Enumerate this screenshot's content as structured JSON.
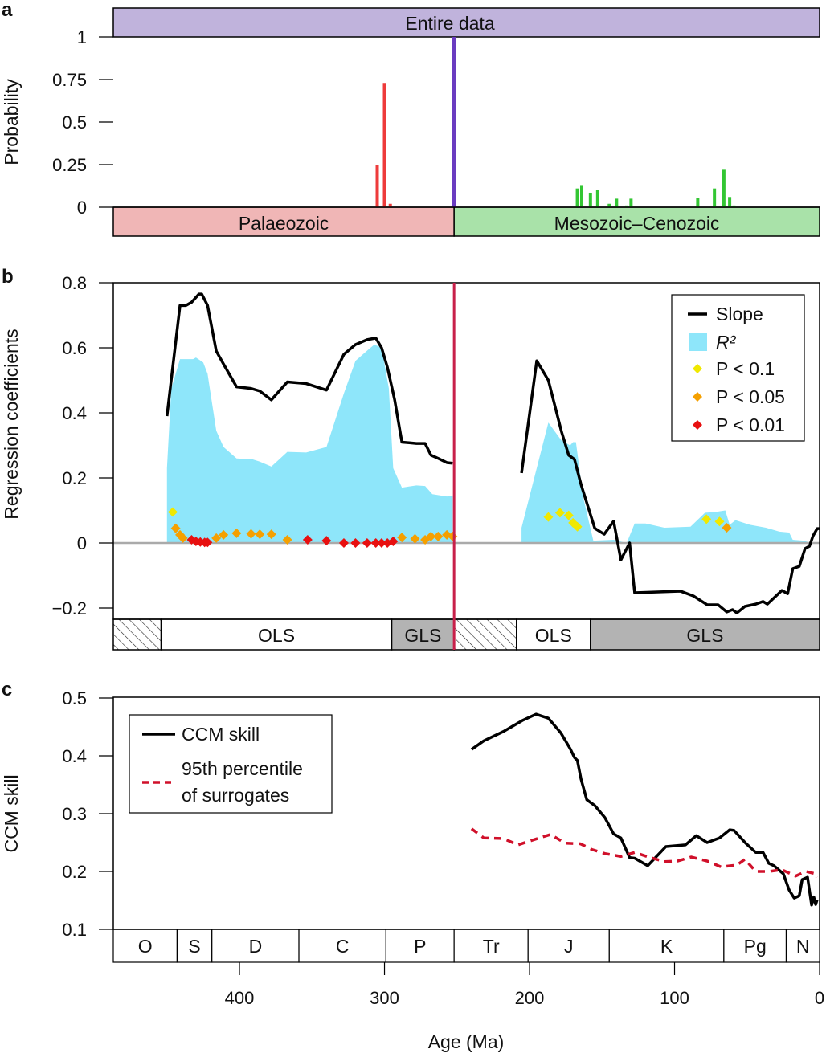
{
  "chart_data": [
    {
      "panel": "a",
      "type": "bar",
      "ylabel": "Probability",
      "header": "Entire data",
      "xlim": [
        487,
        0
      ],
      "ylim": [
        0,
        1
      ],
      "yticks": [
        0,
        0.25,
        0.5,
        0.75,
        1
      ],
      "yticklabels": [
        "0",
        "0.25",
        "0.5",
        "0.75",
        "1"
      ],
      "eras": [
        {
          "label": "Palaeozoic",
          "from": 487,
          "to": 252,
          "color": "#f0b6b6"
        },
        {
          "label": "Mesozoic–Cenozoic",
          "from": 252,
          "to": 0,
          "color": "#a9e2a9"
        }
      ],
      "series": [
        {
          "color": "#ee3b3b",
          "x": [
            305,
            300,
            296
          ],
          "values": [
            0.25,
            0.73,
            0.02
          ]
        },
        {
          "color": "#6a3cc0",
          "x": [
            252
          ],
          "values": [
            1
          ]
        },
        {
          "color": "#33c633",
          "x": [
            167,
            164,
            158,
            153,
            145,
            140,
            133,
            130,
            84,
            72.5,
            66,
            62,
            59
          ],
          "values": [
            0.11,
            0.13,
            0.085,
            0.1,
            0.02,
            0.05,
            0.01,
            0.05,
            0.055,
            0.11,
            0.22,
            0.06,
            0.01
          ]
        }
      ]
    },
    {
      "panel": "b",
      "type": "line",
      "ylabel": "Regression coefficients",
      "xlim": [
        487,
        0
      ],
      "ylim": [
        -0.23,
        0.8
      ],
      "yticks": [
        -0.2,
        0,
        0.2,
        0.4,
        0.6,
        0.8
      ],
      "yticklabels": [
        "−0.2",
        "0",
        "0.2",
        "0.4",
        "0.6",
        "0.8"
      ],
      "boundary_age": 252,
      "legend": {
        "slope": "Slope",
        "r2": "R²",
        "p1": "P < 0.1",
        "p05": "P < 0.05",
        "p01": "P < 0.01"
      },
      "colors": {
        "slope": "#000000",
        "r2": "#8ee6fa",
        "p1": "#f0e800",
        "p05": "#f5a000",
        "p01": "#e81010",
        "boundary": "#c8204a"
      },
      "slope": [
        [
          [
            450,
            0.39
          ],
          [
            441,
            0.73
          ],
          [
            437,
            0.73
          ],
          [
            433,
            0.74
          ],
          [
            428,
            0.765
          ],
          [
            426,
            0.765
          ],
          [
            422,
            0.73
          ],
          [
            416,
            0.59
          ],
          [
            411,
            0.55
          ],
          [
            402,
            0.48
          ],
          [
            392,
            0.475
          ],
          [
            386,
            0.467
          ],
          [
            378,
            0.44
          ],
          [
            367,
            0.495
          ],
          [
            354,
            0.49
          ],
          [
            340,
            0.47
          ],
          [
            328,
            0.58
          ],
          [
            320,
            0.61
          ],
          [
            312,
            0.625
          ],
          [
            306,
            0.63
          ],
          [
            302,
            0.6
          ],
          [
            298,
            0.54
          ],
          [
            293,
            0.44
          ],
          [
            288,
            0.31
          ],
          [
            278,
            0.306
          ],
          [
            272,
            0.306
          ],
          [
            268,
            0.27
          ],
          [
            263,
            0.26
          ],
          [
            257,
            0.247
          ],
          [
            253,
            0.245
          ]
        ],
        [
          [
            205.5,
            0.215
          ],
          [
            195,
            0.56
          ],
          [
            187,
            0.5
          ],
          [
            178,
            0.343
          ],
          [
            173,
            0.27
          ],
          [
            169,
            0.257
          ],
          [
            164.5,
            0.18
          ],
          [
            155,
            0.045
          ],
          [
            148.5,
            0.027
          ],
          [
            142,
            0.067
          ],
          [
            137,
            -0.052
          ],
          [
            131,
            0
          ],
          [
            127.5,
            -0.153
          ],
          [
            96,
            -0.148
          ],
          [
            87,
            -0.163
          ],
          [
            77.5,
            -0.19
          ],
          [
            70,
            -0.19
          ],
          [
            64,
            -0.212
          ],
          [
            60,
            -0.205
          ],
          [
            57,
            -0.215
          ],
          [
            51.5,
            -0.195
          ],
          [
            44,
            -0.188
          ],
          [
            39,
            -0.18
          ],
          [
            36,
            -0.188
          ],
          [
            26,
            -0.146
          ],
          [
            22,
            -0.156
          ],
          [
            18.5,
            -0.079
          ],
          [
            14,
            -0.072
          ],
          [
            10,
            -0.017
          ],
          [
            7,
            -0.01
          ],
          [
            4.5,
            0.022
          ],
          [
            1.7,
            0.044
          ],
          [
            0,
            0.044
          ]
        ]
      ],
      "r2": [
        [
          [
            450,
            0
          ],
          [
            450,
            0.23
          ],
          [
            447,
            0.475
          ],
          [
            441,
            0.565
          ],
          [
            432,
            0.565
          ],
          [
            430,
            0.57
          ],
          [
            425,
            0.555
          ],
          [
            422,
            0.52
          ],
          [
            416,
            0.345
          ],
          [
            411,
            0.295
          ],
          [
            402,
            0.26
          ],
          [
            391,
            0.257
          ],
          [
            386,
            0.25
          ],
          [
            378,
            0.235
          ],
          [
            367,
            0.28
          ],
          [
            354,
            0.278
          ],
          [
            340,
            0.295
          ],
          [
            328,
            0.46
          ],
          [
            320,
            0.56
          ],
          [
            311,
            0.595
          ],
          [
            307,
            0.61
          ],
          [
            302,
            0.6
          ],
          [
            297,
            0.475
          ],
          [
            294,
            0.23
          ],
          [
            288,
            0.17
          ],
          [
            278,
            0.177
          ],
          [
            272,
            0.175
          ],
          [
            267,
            0.15
          ],
          [
            257,
            0.143
          ],
          [
            253,
            0.145
          ],
          [
            253,
            0
          ]
        ],
        [
          [
            205.5,
            0
          ],
          [
            205.5,
            0.047
          ],
          [
            187,
            0.37
          ],
          [
            178,
            0.315
          ],
          [
            172,
            0.3
          ],
          [
            170,
            0.31
          ],
          [
            168,
            0.31
          ],
          [
            163,
            0.14
          ],
          [
            156,
            0.007
          ],
          [
            142,
            0.01
          ],
          [
            133,
            0
          ],
          [
            127.5,
            0.06
          ],
          [
            120,
            0.06
          ],
          [
            107,
            0.047
          ],
          [
            89,
            0.05
          ],
          [
            79,
            0.093
          ],
          [
            72,
            0.095
          ],
          [
            65,
            0.1
          ],
          [
            62,
            0.056
          ],
          [
            58,
            0.07
          ],
          [
            48,
            0.056
          ],
          [
            37,
            0.047
          ],
          [
            27.7,
            0.035
          ],
          [
            21,
            0.032
          ],
          [
            18.5,
            0.01
          ],
          [
            11,
            0.007
          ],
          [
            6,
            0
          ]
        ]
      ],
      "points": [
        {
          "level": "p1",
          "x": [
            446,
            187,
            179,
            173,
            170,
            167,
            78,
            69
          ],
          "values": [
            0.095,
            0.08,
            0.093,
            0.085,
            0.062,
            0.05,
            0.073,
            0.066
          ]
        },
        {
          "level": "p05",
          "x": [
            444,
            441,
            439,
            416,
            411,
            402,
            392,
            386,
            378,
            367,
            288,
            279,
            272,
            268,
            263,
            257,
            253,
            64
          ],
          "values": [
            0.045,
            0.025,
            0.015,
            0.015,
            0.025,
            0.03,
            0.028,
            0.027,
            0.027,
            0.01,
            0.017,
            0.013,
            0.01,
            0.02,
            0.02,
            0.025,
            0.02,
            0.047
          ]
        },
        {
          "level": "p01",
          "x": [
            433,
            430,
            427,
            424,
            422,
            353,
            340,
            328,
            320,
            312,
            306,
            302,
            298,
            294
          ],
          "values": [
            0.01,
            0.005,
            0.003,
            0.002,
            0.002,
            0.01,
            0.007,
            0,
            0,
            0,
            0,
            0,
            0,
            0.005
          ]
        }
      ],
      "methods": [
        {
          "label": "",
          "from": 487,
          "to": 454,
          "style": "hatched"
        },
        {
          "label": "OLS",
          "from": 454,
          "to": 295,
          "style": "white"
        },
        {
          "label": "GLS",
          "from": 295,
          "to": 252,
          "style": "gray"
        },
        {
          "label": "",
          "from": 252,
          "to": 209,
          "style": "hatched"
        },
        {
          "label": "OLS",
          "from": 209,
          "to": 158,
          "style": "white"
        },
        {
          "label": "GLS",
          "from": 158,
          "to": 0,
          "style": "gray"
        }
      ]
    },
    {
      "panel": "c",
      "type": "line",
      "ylabel": "CCM skill",
      "xlabel": "Age (Ma)",
      "xlim": [
        487,
        0
      ],
      "ylim": [
        0.1,
        0.5
      ],
      "yticks": [
        0.1,
        0.2,
        0.3,
        0.4,
        0.5
      ],
      "yticklabels": [
        "0.1",
        "0.2",
        "0.3",
        "0.4",
        "0.5"
      ],
      "xticks": [
        400,
        300,
        200,
        100,
        0
      ],
      "xticklabels": [
        "400",
        "300",
        "200",
        "100",
        "0"
      ],
      "series": [
        {
          "name": "CCM skill",
          "color": "#000000",
          "style": "solid",
          "points": [
            [
              240,
              0.411
            ],
            [
              231.5,
              0.426
            ],
            [
              218,
              0.442
            ],
            [
              205,
              0.461
            ],
            [
              195.5,
              0.472
            ],
            [
              187,
              0.465
            ],
            [
              178.5,
              0.44
            ],
            [
              172,
              0.4125
            ],
            [
              169,
              0.397
            ],
            [
              167,
              0.392
            ],
            [
              164.5,
              0.36
            ],
            [
              160.5,
              0.324
            ],
            [
              155,
              0.314
            ],
            [
              148,
              0.293
            ],
            [
              142,
              0.265
            ],
            [
              137,
              0.258
            ],
            [
              131,
              0.224
            ],
            [
              127.5,
              0.223
            ],
            [
              118.5,
              0.21
            ],
            [
              106,
              0.243
            ],
            [
              92.5,
              0.246
            ],
            [
              85,
              0.262
            ],
            [
              77.5,
              0.25
            ],
            [
              69,
              0.258
            ],
            [
              62,
              0.272
            ],
            [
              59,
              0.271
            ],
            [
              51,
              0.249
            ],
            [
              44,
              0.233
            ],
            [
              39,
              0.233
            ],
            [
              35,
              0.214
            ],
            [
              31.5,
              0.21
            ],
            [
              25,
              0.196
            ],
            [
              21,
              0.168
            ],
            [
              17.5,
              0.154
            ],
            [
              14,
              0.158
            ],
            [
              12,
              0.186
            ],
            [
              8.3,
              0.19
            ],
            [
              5.5,
              0.142
            ],
            [
              4,
              0.156
            ],
            [
              2.7,
              0.143
            ],
            [
              1.7,
              0.151
            ]
          ]
        },
        {
          "name": "95th percentile\nof surrogates",
          "name_lines": [
            "95th percentile",
            "of surrogates"
          ],
          "color": "#d0102a",
          "style": "dashed",
          "points": [
            [
              240,
              0.274
            ],
            [
              231.5,
              0.258
            ],
            [
              218,
              0.257
            ],
            [
              208,
              0.246
            ],
            [
              199.5,
              0.253
            ],
            [
              185.5,
              0.264
            ],
            [
              175.5,
              0.249
            ],
            [
              165,
              0.248
            ],
            [
              157,
              0.238
            ],
            [
              148,
              0.231
            ],
            [
              137,
              0.226
            ],
            [
              127.5,
              0.233
            ],
            [
              118,
              0.225
            ],
            [
              107,
              0.217
            ],
            [
              98,
              0.218
            ],
            [
              88.6,
              0.225
            ],
            [
              77.5,
              0.218
            ],
            [
              68,
              0.208
            ],
            [
              57,
              0.211
            ],
            [
              51.5,
              0.221
            ],
            [
              44,
              0.2
            ],
            [
              35,
              0.2
            ],
            [
              26,
              0.203
            ],
            [
              16.6,
              0.192
            ],
            [
              9.4,
              0.2
            ],
            [
              2.7,
              0.196
            ],
            [
              2,
              0.19
            ]
          ]
        }
      ],
      "periods": [
        {
          "label": "O",
          "from": 487,
          "to": 443
        },
        {
          "label": "S",
          "from": 443,
          "to": 419
        },
        {
          "label": "D",
          "from": 419,
          "to": 359
        },
        {
          "label": "C",
          "from": 359,
          "to": 299
        },
        {
          "label": "P",
          "from": 299,
          "to": 252
        },
        {
          "label": "Tr",
          "from": 252,
          "to": 201
        },
        {
          "label": "J",
          "from": 201,
          "to": 145
        },
        {
          "label": "K",
          "from": 145,
          "to": 66
        },
        {
          "label": "Pg",
          "from": 66,
          "to": 23
        },
        {
          "label": "N",
          "from": 23,
          "to": 0
        }
      ]
    }
  ],
  "panel_letters": [
    "a",
    "b",
    "c"
  ]
}
